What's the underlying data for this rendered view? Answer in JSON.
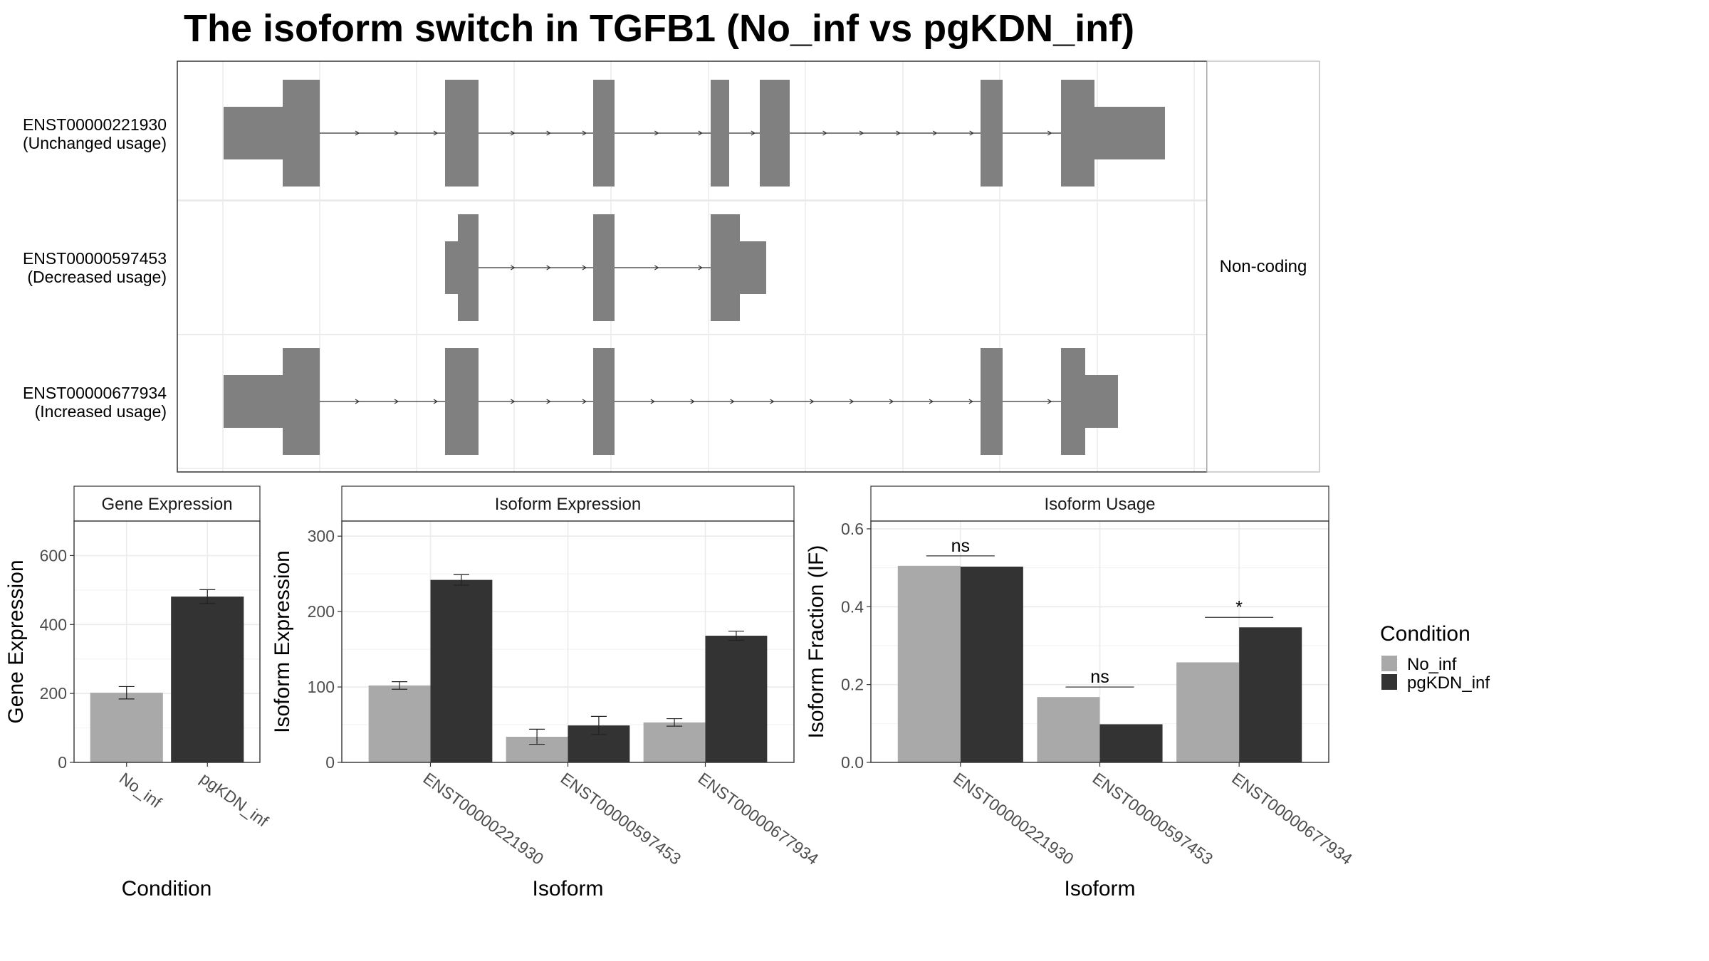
{
  "title": "The isoform switch in TGFB1 (No_inf vs pgKDN_inf)",
  "colors": {
    "exon": "#808080",
    "No_inf": "#a9a9a9",
    "pgKDN_inf": "#333333",
    "grid": "#ebebeb",
    "strip_bg": "#ffffff"
  },
  "transcript_panel": {
    "strip_label": "Non-coding",
    "transcripts": [
      {
        "id": "ENST00000221930",
        "usage": "(Unchanged usage)"
      },
      {
        "id": "ENST00000597453",
        "usage": "(Decreased usage)"
      },
      {
        "id": "ENST00000677934",
        "usage": "(Increased usage)"
      }
    ]
  },
  "legend": {
    "title": "Condition",
    "items": [
      "No_inf",
      "pgKDN_inf"
    ]
  },
  "chart_data": [
    {
      "type": "bar",
      "title": "Gene Expression",
      "xlabel": "Condition",
      "ylabel": "Gene Expression",
      "categories": [
        "No_inf",
        "pgKDN_inf"
      ],
      "values": [
        202,
        481
      ],
      "errors": [
        18,
        20
      ],
      "ylim": [
        0,
        700
      ],
      "yticks": [
        "0",
        "200",
        "400",
        "600"
      ]
    },
    {
      "type": "bar",
      "title": "Isoform Expression",
      "xlabel": "Isoform",
      "ylabel": "Isoform Expression",
      "categories": [
        "ENST00000221930",
        "ENST00000597453",
        "ENST00000677934"
      ],
      "series": [
        {
          "name": "No_inf",
          "values": [
            102,
            34,
            53
          ],
          "errors": [
            5,
            10,
            5
          ]
        },
        {
          "name": "pgKDN_inf",
          "values": [
            242,
            49,
            168
          ],
          "errors": [
            7,
            12,
            6
          ]
        }
      ],
      "ylim": [
        0,
        320
      ],
      "yticks": [
        "0",
        "100",
        "200",
        "300"
      ]
    },
    {
      "type": "bar",
      "title": "Isoform Usage",
      "xlabel": "Isoform",
      "ylabel": "Isoform Fraction (IF)",
      "categories": [
        "ENST00000221930",
        "ENST00000597453",
        "ENST00000677934"
      ],
      "series": [
        {
          "name": "No_inf",
          "values": [
            0.505,
            0.168,
            0.257
          ]
        },
        {
          "name": "pgKDN_inf",
          "values": [
            0.503,
            0.098,
            0.347
          ]
        }
      ],
      "significance": [
        "ns",
        "ns",
        "*"
      ],
      "ylim": [
        0,
        0.62
      ],
      "yticks": [
        "0.0",
        "0.2",
        "0.4",
        "0.6"
      ]
    }
  ]
}
